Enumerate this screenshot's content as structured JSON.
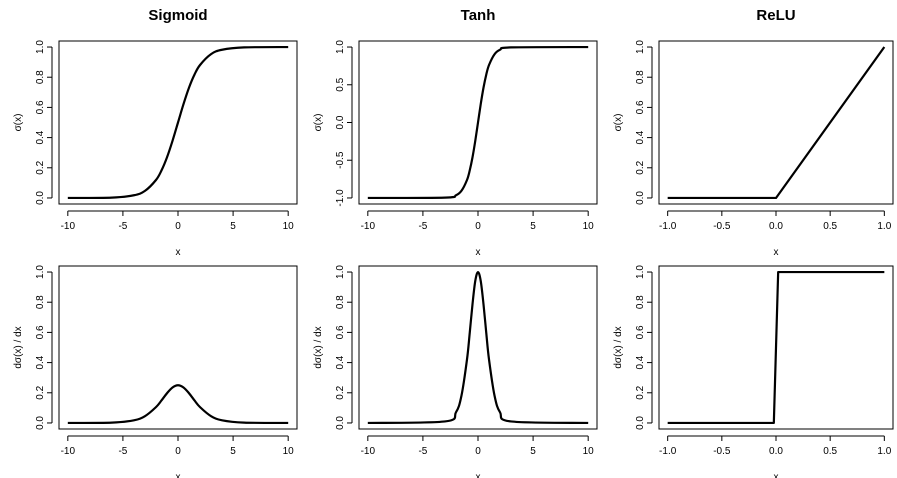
{
  "chart_data": [
    {
      "type": "line",
      "title": "Sigmoid",
      "xlabel": "x",
      "ylabel": "σ(x)",
      "xlim": [
        -10.8,
        10.8
      ],
      "ylim": [
        -0.04,
        1.04
      ],
      "xticks": [
        -10,
        -5,
        0,
        5,
        10
      ],
      "xtick_labels": [
        "-10",
        "-5",
        "0",
        "5",
        "10"
      ],
      "yticks": [
        0,
        0.2,
        0.4,
        0.6,
        0.8,
        1
      ],
      "ytick_labels": [
        "0.0",
        "0.2",
        "0.4",
        "0.6",
        "0.8",
        "1.0"
      ],
      "series": [
        {
          "x": [
            -10,
            -6,
            -4,
            -3,
            -2,
            -1.5,
            -1,
            -0.5,
            0,
            0.5,
            1,
            1.5,
            2,
            3,
            4,
            6,
            10
          ],
          "y": [
            4.54e-05,
            0.0025,
            0.018,
            0.047,
            0.119,
            0.182,
            0.269,
            0.378,
            0.5,
            0.622,
            0.731,
            0.818,
            0.881,
            0.953,
            0.982,
            0.9975,
            0.99995
          ]
        }
      ]
    },
    {
      "type": "line",
      "title": "Tanh",
      "xlabel": "x",
      "ylabel": "σ(x)",
      "xlim": [
        -10.8,
        10.8
      ],
      "ylim": [
        -1.08,
        1.08
      ],
      "xticks": [
        -10,
        -5,
        0,
        5,
        10
      ],
      "xtick_labels": [
        "-10",
        "-5",
        "0",
        "5",
        "10"
      ],
      "yticks": [
        -1,
        -0.5,
        0,
        0.5,
        1
      ],
      "ytick_labels": [
        "-1.0",
        "-0.5",
        "0.0",
        "0.5",
        "1.0"
      ],
      "series": [
        {
          "x": [
            -10,
            -3,
            -2,
            -1.5,
            -1,
            -0.75,
            -0.5,
            -0.25,
            0,
            0.25,
            0.5,
            0.75,
            1,
            1.5,
            2,
            3,
            10
          ],
          "y": [
            -1,
            -0.995,
            -0.964,
            -0.905,
            -0.762,
            -0.635,
            -0.462,
            -0.245,
            0,
            0.245,
            0.462,
            0.635,
            0.762,
            0.905,
            0.964,
            0.995,
            1
          ]
        }
      ]
    },
    {
      "type": "line",
      "title": "ReLU",
      "xlabel": "x",
      "ylabel": "σ(x)",
      "xlim": [
        -1.08,
        1.08
      ],
      "ylim": [
        -0.04,
        1.04
      ],
      "xticks": [
        -1,
        -0.5,
        0,
        0.5,
        1
      ],
      "xtick_labels": [
        "-1.0",
        "-0.5",
        "0.0",
        "0.5",
        "1.0"
      ],
      "yticks": [
        0,
        0.2,
        0.4,
        0.6,
        0.8,
        1
      ],
      "ytick_labels": [
        "0.0",
        "0.2",
        "0.4",
        "0.6",
        "0.8",
        "1.0"
      ],
      "series": [
        {
          "x": [
            -1,
            0,
            1
          ],
          "y": [
            0,
            0,
            1
          ]
        }
      ]
    },
    {
      "type": "line",
      "title": "",
      "xlabel": "x",
      "ylabel": "dσ(x) / dx",
      "xlim": [
        -10.8,
        10.8
      ],
      "ylim": [
        -0.04,
        1.04
      ],
      "xticks": [
        -10,
        -5,
        0,
        5,
        10
      ],
      "xtick_labels": [
        "-10",
        "-5",
        "0",
        "5",
        "10"
      ],
      "yticks": [
        0,
        0.2,
        0.4,
        0.6,
        0.8,
        1
      ],
      "ytick_labels": [
        "0.0",
        "0.2",
        "0.4",
        "0.6",
        "0.8",
        "1.0"
      ],
      "series": [
        {
          "x": [
            -10,
            -6,
            -4,
            -3,
            -2,
            -1.5,
            -1,
            -0.5,
            0,
            0.5,
            1,
            1.5,
            2,
            3,
            4,
            6,
            10
          ],
          "y": [
            4.54e-05,
            0.0025,
            0.0177,
            0.0452,
            0.105,
            0.149,
            0.197,
            0.235,
            0.25,
            0.235,
            0.197,
            0.149,
            0.105,
            0.0452,
            0.0177,
            0.0025,
            4.54e-05
          ]
        }
      ]
    },
    {
      "type": "line",
      "title": "",
      "xlabel": "x",
      "ylabel": "dσ(x) / dx",
      "xlim": [
        -10.8,
        10.8
      ],
      "ylim": [
        -0.04,
        1.04
      ],
      "xticks": [
        -10,
        -5,
        0,
        5,
        10
      ],
      "xtick_labels": [
        "-10",
        "-5",
        "0",
        "5",
        "10"
      ],
      "yticks": [
        0,
        0.2,
        0.4,
        0.6,
        0.8,
        1
      ],
      "ytick_labels": [
        "0.0",
        "0.2",
        "0.4",
        "0.6",
        "0.8",
        "1.0"
      ],
      "series": [
        {
          "x": [
            -10,
            -3,
            -2,
            -1.5,
            -1,
            -0.75,
            -0.5,
            -0.25,
            0,
            0.25,
            0.5,
            0.75,
            1,
            1.5,
            2,
            3,
            10
          ],
          "y": [
            0,
            0.0099,
            0.0707,
            0.181,
            0.42,
            0.597,
            0.786,
            0.94,
            1,
            0.94,
            0.786,
            0.597,
            0.42,
            0.181,
            0.0707,
            0.0099,
            0
          ]
        }
      ]
    },
    {
      "type": "line",
      "title": "",
      "xlabel": "x",
      "ylabel": "dσ(x) / dx",
      "xlim": [
        -1.08,
        1.08
      ],
      "ylim": [
        -0.04,
        1.04
      ],
      "xticks": [
        -1,
        -0.5,
        0,
        0.5,
        1
      ],
      "xtick_labels": [
        "-1.0",
        "-0.5",
        "0.0",
        "0.5",
        "1.0"
      ],
      "yticks": [
        0,
        0.2,
        0.4,
        0.6,
        0.8,
        1
      ],
      "ytick_labels": [
        "0.0",
        "0.2",
        "0.4",
        "0.6",
        "0.8",
        "1.0"
      ],
      "series": [
        {
          "x": [
            -1,
            -0.02,
            0.02,
            1
          ],
          "y": [
            0,
            0,
            1,
            1
          ]
        }
      ]
    }
  ],
  "style": {
    "line_color": "#000000",
    "axis_color": "#000000",
    "background": "#ffffff"
  }
}
